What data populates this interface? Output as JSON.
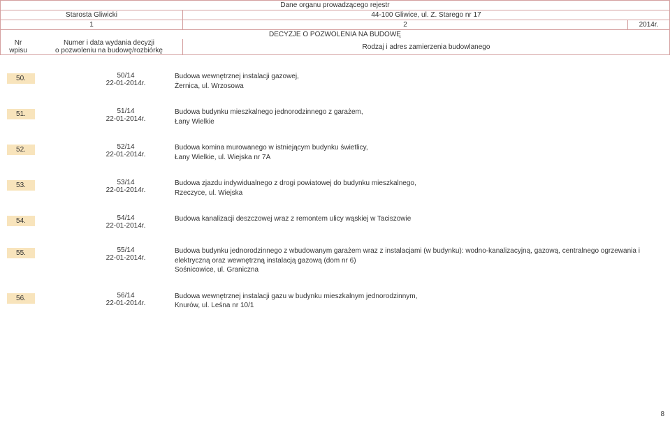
{
  "header": {
    "title": "Dane organu prowadzącego rejestr",
    "authority": "Starosta Gliwicki",
    "address": "44-100 Gliwice, ul. Z. Starego nr 17",
    "col1": "1",
    "col2": "2",
    "year": "2014r.",
    "subtitle": "DECYZJE O POZWOLENIA NA BUDOWĘ",
    "nr_label1": "Nr",
    "nr_label2": "wpisu",
    "num_label1": "Numer i data wydania decyzji",
    "num_label2": "o pozwoleniu na budowę/rozbiórkę",
    "desc_label": "Rodzaj i adres zamierzenia budowlanego"
  },
  "entries": [
    {
      "nr": "50.",
      "num": "50/14",
      "date": "22-01-2014r.",
      "desc_lines": [
        "Budowa wewnętrznej instalacji gazowej,",
        "Żernica, ul. Wrzosowa"
      ]
    },
    {
      "nr": "51.",
      "num": "51/14",
      "date": "22-01-2014r.",
      "desc_lines": [
        "Budowa budynku mieszkalnego jednorodzinnego z garażem,",
        "Łany Wielkie"
      ]
    },
    {
      "nr": "52.",
      "num": "52/14",
      "date": "22-01-2014r.",
      "desc_lines": [
        "Budowa komina murowanego w istniejącym budynku świetlicy,",
        "Łany Wielkie, ul. Wiejska nr 7A"
      ]
    },
    {
      "nr": "53.",
      "num": "53/14",
      "date": "22-01-2014r.",
      "desc_lines": [
        "Budowa zjazdu indywidualnego z drogi powiatowej do budynku mieszkalnego,",
        "Rzeczyce, ul. Wiejska"
      ]
    },
    {
      "nr": "54.",
      "num": "54/14",
      "date": "22-01-2014r.",
      "desc_lines": [
        "Budowa kanalizacji deszczowej wraz z remontem ulicy wąskiej w Taciszowie"
      ]
    },
    {
      "nr": "55.",
      "num": "55/14",
      "date": "22-01-2014r.",
      "desc_lines": [
        "Budowa budynku  jednorodzinnego z wbudowanym garażem wraz z instalacjami (w budynku): wodno-kanalizacyjną, gazową, centralnego ogrzewania i elektryczną oraz wewnętrzną instalacją gazową (dom nr 6)",
        "Sośnicowice, ul. Graniczna"
      ]
    },
    {
      "nr": "56.",
      "num": "56/14",
      "date": "22-01-2014r.",
      "desc_lines": [
        "Budowa wewnętrznej instalacji gazu w budynku mieszkalnym jednorodzinnym,",
        "Knurów, ul. Leśna nr 10/1"
      ]
    }
  ],
  "page": "8",
  "colors": {
    "border": "#d4a0a0",
    "highlight": "#f8e4bc",
    "text": "#333333",
    "bg": "#ffffff"
  }
}
